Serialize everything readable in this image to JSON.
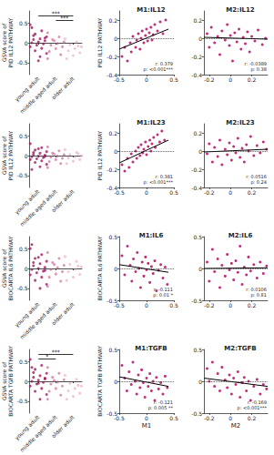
{
  "chart_data": [
    {
      "type": "strip",
      "y_label": "GSVA score of\nPID IL12 PATHWAY",
      "categories": [
        "young adult",
        "middle aged adult",
        "older adult"
      ],
      "colors": [
        "#a3175f",
        "#d77aa6",
        "#ecb8cf"
      ],
      "values": [
        [
          0.45,
          0.3,
          0.22,
          0.15,
          0.1,
          0.08,
          0.05,
          0.02,
          0,
          -0.03,
          -0.06,
          -0.1,
          -0.14,
          -0.2,
          -0.27,
          -0.35,
          0.18,
          0.12,
          -0.45,
          0.38
        ],
        [
          0.25,
          0.15,
          0.08,
          0.02,
          -0.02,
          -0.06,
          -0.1,
          -0.15,
          -0.22,
          -0.3,
          0.05,
          -0.4
        ],
        [
          0.1,
          0.02,
          -0.05,
          -0.1,
          -0.15,
          -0.2,
          -0.25,
          -0.32,
          -0.4,
          -0.08
        ]
      ],
      "ylim": [
        -0.8,
        0.8
      ],
      "yticks": [
        -0.5,
        0,
        0.5
      ],
      "hline": 0,
      "comparisons": [
        {
          "between": [
            0,
            2
          ],
          "label": "***"
        },
        {
          "between": [
            1,
            2
          ],
          "label": "***"
        }
      ]
    },
    {
      "type": "scatter",
      "title": "M1:IL12",
      "y_label": "PID IL12 PATHWAY",
      "color": "#b8186c",
      "x": [
        -0.45,
        -0.4,
        -0.35,
        -0.3,
        -0.28,
        -0.25,
        -0.2,
        -0.18,
        -0.15,
        -0.12,
        -0.1,
        -0.08,
        -0.05,
        -0.02,
        0,
        0.02,
        0.05,
        0.08,
        0.1,
        0.12,
        0.15,
        0.2,
        0.25,
        0.3,
        0.35
      ],
      "values": [
        -0.2,
        -0.1,
        -0.25,
        -0.05,
        -0.15,
        0.02,
        -0.1,
        -0.02,
        0.05,
        -0.12,
        0,
        0.08,
        -0.05,
        0.03,
        0.1,
        -0.03,
        0.06,
        0.12,
        -0.02,
        0.04,
        0.15,
        0.08,
        0.18,
        0.05,
        0.2
      ],
      "trend": {
        "x": [
          -0.5,
          0.4
        ],
        "values": [
          -0.12,
          0.1
        ]
      },
      "annotation": "r: 0.379\np: <0.001***",
      "xlim": [
        -0.5,
        0.5
      ],
      "xticks": [
        -0.5,
        0,
        0.5
      ],
      "ylim": [
        -0.4,
        0.3
      ],
      "yticks": [
        -0.4,
        -0.2,
        0,
        0.2
      ],
      "hline": 0
    },
    {
      "type": "scatter",
      "title": "M2:IL12",
      "color": "#b8186c",
      "x": [
        -0.22,
        -0.2,
        -0.18,
        -0.15,
        -0.12,
        -0.1,
        -0.08,
        -0.05,
        -0.03,
        -0.01,
        0,
        0.02,
        0.04,
        0.06,
        0.08,
        0.1,
        0.12,
        0.14,
        0.16,
        0.18,
        0.2,
        0.23,
        0.26,
        0.3,
        0.33
      ],
      "values": [
        0.05,
        -0.1,
        0.12,
        -0.05,
        0.02,
        -0.18,
        0.08,
        -0.02,
        0.15,
        -0.08,
        0.03,
        -0.25,
        0.06,
        -0.04,
        0.1,
        -0.12,
        0.01,
        -0.06,
        0.07,
        -0.15,
        0.02,
        -0.03,
        0.09,
        -0.07,
        0
      ],
      "trend": {
        "x": [
          -0.25,
          0.35
        ],
        "values": [
          0.01,
          -0.01
        ]
      },
      "annotation": "r: -0.0389\np: 0.38",
      "xlim": [
        -0.25,
        0.35
      ],
      "xticks": [
        -0.2,
        0,
        0.2
      ],
      "ylim": [
        -0.4,
        0.3
      ],
      "yticks": [
        -0.4,
        -0.2,
        0,
        0.2
      ],
      "hline": 0
    },
    {
      "type": "strip",
      "y_label": "GSVA score of\nPID IL12 PATHWAY",
      "categories": [
        "young adult",
        "middle aged adult",
        "older adult"
      ],
      "colors": [
        "#a3175f",
        "#d77aa6",
        "#ecb8cf"
      ],
      "values": [
        [
          0.3,
          0.2,
          0.14,
          0.1,
          0.06,
          0.03,
          0.01,
          -0.01,
          -0.03,
          -0.05,
          -0.08,
          -0.1,
          -0.13,
          -0.17,
          -0.22,
          -0.28,
          0.08,
          -0.02,
          0.17,
          -0.35
        ],
        [
          0.22,
          0.12,
          0.06,
          0.02,
          -0.01,
          -0.04,
          -0.07,
          -0.1,
          -0.15,
          -0.2,
          0.04,
          -0.3
        ],
        [
          0.15,
          0.08,
          0.03,
          0,
          -0.03,
          -0.06,
          -0.1,
          -0.14,
          -0.2,
          0.05
        ]
      ],
      "ylim": [
        -0.8,
        0.8
      ],
      "yticks": [
        -0.5,
        0,
        0.5
      ],
      "hline": 0
    },
    {
      "type": "scatter",
      "title": "M1:IL23",
      "y_label": "PID IL12 PATHWAY",
      "color": "#b8186c",
      "x": [
        -0.45,
        -0.4,
        -0.35,
        -0.32,
        -0.28,
        -0.25,
        -0.2,
        -0.18,
        -0.15,
        -0.12,
        -0.1,
        -0.07,
        -0.05,
        -0.02,
        0,
        0.03,
        0.06,
        0.08,
        0.1,
        0.13,
        0.16,
        0.2,
        0.24,
        0.28,
        0.33
      ],
      "values": [
        -0.15,
        -0.22,
        -0.08,
        -0.18,
        -0.03,
        -0.12,
        0,
        -0.08,
        0.04,
        -0.05,
        0.07,
        -0.02,
        0.02,
        0.1,
        -0.04,
        0.05,
        0.12,
        0,
        0.08,
        0.15,
        0.04,
        0.18,
        0.1,
        0.22,
        0.12
      ],
      "trend": {
        "x": [
          -0.5,
          0.4
        ],
        "values": [
          -0.13,
          0.12
        ]
      },
      "annotation": "r: 0.381\np: <0.001***",
      "xlim": [
        -0.5,
        0.5
      ],
      "xticks": [
        -0.5,
        0,
        0.5
      ],
      "ylim": [
        -0.4,
        0.3
      ],
      "yticks": [
        -0.4,
        -0.2,
        0,
        0.2
      ],
      "hline": 0
    },
    {
      "type": "scatter",
      "title": "M2:IL23",
      "color": "#b8186c",
      "x": [
        -0.22,
        -0.2,
        -0.17,
        -0.15,
        -0.12,
        -0.1,
        -0.08,
        -0.05,
        -0.03,
        -0.01,
        0.01,
        0.03,
        0.05,
        0.07,
        0.09,
        0.11,
        0.13,
        0.15,
        0.17,
        0.19,
        0.22,
        0.25,
        0.28,
        0.31,
        0.34
      ],
      "values": [
        -0.03,
        0.08,
        -0.12,
        0.04,
        -0.06,
        0.12,
        -0.15,
        0.02,
        -0.04,
        0.09,
        -0.1,
        0.05,
        -0.02,
        0.14,
        -0.07,
        0.03,
        -0.12,
        0.07,
        0,
        0.16,
        -0.05,
        0.06,
        -0.02,
        0.1,
        0.02
      ],
      "trend": {
        "x": [
          -0.25,
          0.35
        ],
        "values": [
          -0.01,
          0.02
        ]
      },
      "annotation": "r: 0.0516\np: 0.24",
      "xlim": [
        -0.25,
        0.35
      ],
      "xticks": [
        -0.2,
        0,
        0.2
      ],
      "ylim": [
        -0.4,
        0.3
      ],
      "yticks": [
        -0.4,
        -0.2,
        0,
        0.2
      ],
      "hline": 0
    },
    {
      "type": "strip",
      "y_label": "GSVA score of\nBIOCARTA IL6 PATHWAY",
      "categories": [
        "young adult",
        "middle aged adult",
        "older adult"
      ],
      "colors": [
        "#a3175f",
        "#d77aa6",
        "#ecb8cf"
      ],
      "values": [
        [
          0.5,
          0.35,
          0.25,
          0.18,
          0.12,
          0.07,
          0.03,
          0,
          -0.03,
          -0.07,
          -0.11,
          -0.16,
          -0.22,
          -0.3,
          -0.4,
          -0.5,
          0.15,
          -0.05,
          0.28,
          0.6
        ],
        [
          0.4,
          0.25,
          0.15,
          0.08,
          0.02,
          -0.03,
          -0.08,
          -0.14,
          -0.22,
          -0.32,
          0.1,
          -0.45
        ],
        [
          0.3,
          0.18,
          0.1,
          0.04,
          -0.02,
          -0.08,
          -0.15,
          -0.22,
          -0.3,
          0.06
        ]
      ],
      "ylim": [
        -0.8,
        0.8
      ],
      "yticks": [
        -0.5,
        0,
        0.5
      ],
      "hline": 0
    },
    {
      "type": "scatter",
      "title": "M1:IL6",
      "y_label": "BIOCARTA IL6 PATHWAY",
      "color": "#b8186c",
      "x": [
        -0.45,
        -0.4,
        -0.35,
        -0.3,
        -0.27,
        -0.24,
        -0.2,
        -0.17,
        -0.14,
        -0.11,
        -0.08,
        -0.05,
        -0.02,
        0,
        0.03,
        0.06,
        0.09,
        0.12,
        0.15,
        0.18,
        0.22,
        0.26,
        0.3,
        0.34,
        0.38
      ],
      "values": [
        0.2,
        -0.1,
        0.35,
        0.05,
        -0.2,
        0.15,
        -0.05,
        0.25,
        0,
        -0.3,
        0.1,
        -0.12,
        0.18,
        -0.02,
        0.08,
        -0.22,
        0.03,
        -0.08,
        0.12,
        -0.35,
        -0.03,
        0.06,
        -0.15,
        0.02,
        -0.25
      ],
      "trend": {
        "x": [
          -0.5,
          0.4
        ],
        "values": [
          0.06,
          -0.06
        ]
      },
      "annotation": "r: -0.111\np: 0.01 *",
      "xlim": [
        -0.5,
        0.5
      ],
      "xticks": [
        -0.5,
        0,
        0.5
      ],
      "ylim": [
        -0.5,
        0.5
      ],
      "yticks": [
        -0.5,
        0,
        0.5
      ],
      "hline": 0
    },
    {
      "type": "scatter",
      "title": "M2:IL6",
      "color": "#b8186c",
      "x": [
        -0.22,
        -0.2,
        -0.17,
        -0.15,
        -0.12,
        -0.1,
        -0.08,
        -0.05,
        -0.03,
        -0.01,
        0.01,
        0.03,
        0.05,
        0.07,
        0.09,
        0.11,
        0.13,
        0.15,
        0.17,
        0.19,
        0.22,
        0.25,
        0.28,
        0.31,
        0.34
      ],
      "values": [
        0.1,
        -0.2,
        0.3,
        -0.05,
        0.15,
        -0.3,
        0.05,
        -0.12,
        0.22,
        -0.02,
        0.08,
        -0.18,
        0.12,
        -0.06,
        0.35,
        -0.25,
        0.02,
        -0.1,
        0.18,
        -0.04,
        0.06,
        -0.15,
        0.1,
        -0.08,
        0.04
      ],
      "trend": {
        "x": [
          -0.25,
          0.35
        ],
        "values": [
          0,
          0.01
        ]
      },
      "annotation": "r: 0.0106\np: 0.81",
      "xlim": [
        -0.25,
        0.35
      ],
      "xticks": [
        -0.2,
        0,
        0.2
      ],
      "ylim": [
        -0.5,
        0.5
      ],
      "yticks": [
        -0.5,
        0,
        0.5
      ],
      "hline": 0
    },
    {
      "type": "strip",
      "y_label": "GSVA score of\nBIOCARTA TGFB PATHWAY",
      "categories": [
        "young adult",
        "middle aged adult",
        "older adult"
      ],
      "colors": [
        "#a3175f",
        "#d77aa6",
        "#ecb8cf"
      ],
      "values": [
        [
          0.55,
          0.4,
          0.3,
          0.2,
          0.14,
          0.1,
          0.06,
          0.03,
          0,
          -0.03,
          -0.07,
          -0.12,
          -0.18,
          -0.25,
          -0.33,
          -0.45,
          0.22,
          0.08,
          -0.05,
          0.35
        ],
        [
          0.35,
          0.2,
          0.1,
          0.04,
          -0.02,
          -0.07,
          -0.12,
          -0.18,
          -0.25,
          -0.35,
          0.02,
          -0.45
        ],
        [
          0.15,
          0.05,
          -0.05,
          -0.12,
          -0.18,
          -0.24,
          -0.3,
          -0.38,
          -0.45,
          -0.1
        ]
      ],
      "ylim": [
        -0.8,
        0.8
      ],
      "yticks": [
        -0.5,
        0,
        0.5
      ],
      "hline": 0,
      "comparisons": [
        {
          "between": [
            0,
            2
          ],
          "label": "***"
        },
        {
          "between": [
            0,
            1
          ],
          "label": "*"
        }
      ]
    },
    {
      "type": "scatter",
      "title": "M1:TGFB",
      "y_label": "BIOCARTA TGFB PATHWAY",
      "x_label": "M1",
      "color": "#b8186c",
      "x": [
        -0.45,
        -0.4,
        -0.36,
        -0.32,
        -0.28,
        -0.25,
        -0.21,
        -0.18,
        -0.15,
        -0.12,
        -0.09,
        -0.06,
        -0.03,
        0,
        0.03,
        0.06,
        0.09,
        0.12,
        0.15,
        0.18,
        0.22,
        0.26,
        0.3,
        0.34,
        0.38
      ],
      "values": [
        0.25,
        0.05,
        -0.15,
        0.15,
        -0.05,
        0.3,
        0,
        -0.2,
        0.1,
        -0.1,
        0.18,
        -0.02,
        -0.25,
        0.05,
        -0.08,
        0.12,
        -0.15,
        0,
        -0.3,
        0.06,
        -0.12,
        -0.02,
        -0.2,
        0.08,
        -0.1
      ],
      "trend": {
        "x": [
          -0.5,
          0.4
        ],
        "values": [
          0.07,
          -0.08
        ]
      },
      "annotation": "r: -0.121\np: 0.005 **",
      "xlim": [
        -0.5,
        0.5
      ],
      "xticks": [
        -0.5,
        0,
        0.5
      ],
      "ylim": [
        -0.5,
        0.5
      ],
      "yticks": [
        -0.5,
        0,
        0.5
      ],
      "hline": 0
    },
    {
      "type": "scatter",
      "title": "M2:TGFB",
      "x_label": "M2",
      "color": "#b8186c",
      "x": [
        -0.22,
        -0.2,
        -0.17,
        -0.15,
        -0.12,
        -0.1,
        -0.08,
        -0.05,
        -0.03,
        -0.01,
        0.01,
        0.03,
        0.05,
        0.07,
        0.09,
        0.11,
        0.13,
        0.15,
        0.17,
        0.19,
        0.22,
        0.25,
        0.28,
        0.31,
        0.34
      ],
      "values": [
        0.2,
        0,
        0.3,
        -0.08,
        0.12,
        -0.15,
        0.22,
        0.02,
        -0.1,
        0.1,
        -0.2,
        0.05,
        -0.05,
        0.15,
        -0.25,
        -0.02,
        0.06,
        -0.15,
        0,
        -0.3,
        -0.08,
        0.03,
        -0.2,
        -0.05,
        -0.12
      ],
      "trend": {
        "x": [
          -0.25,
          0.35
        ],
        "values": [
          0.05,
          -0.08
        ]
      },
      "annotation": "r: -0.169\np: <0.001***",
      "xlim": [
        -0.25,
        0.35
      ],
      "xticks": [
        -0.2,
        0,
        0.2
      ],
      "ylim": [
        -0.5,
        0.5
      ],
      "yticks": [
        -0.5,
        0,
        0.5
      ],
      "hline": 0
    }
  ]
}
